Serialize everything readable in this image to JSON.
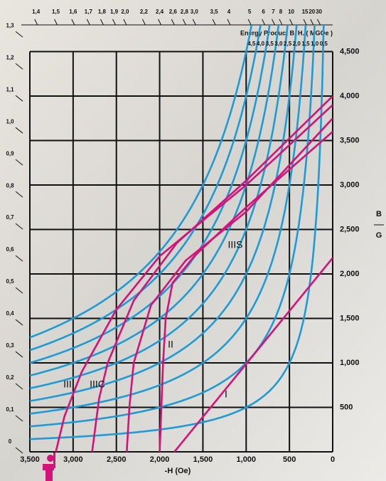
{
  "chart_data": {
    "type": "demagnetization",
    "x_label": "-H (Oe)",
    "y_label": "B",
    "y_label_unit": "G",
    "xlim": [
      3500,
      0
    ],
    "ylim": [
      0,
      4800
    ],
    "xticks": [
      {
        "value": 3500,
        "label": "3,500"
      },
      {
        "value": 3000,
        "label": "3,000"
      },
      {
        "value": 2500,
        "label": "2,500"
      },
      {
        "value": 2000,
        "label": "2,000"
      },
      {
        "value": 1500,
        "label": "1,500"
      },
      {
        "value": 1000,
        "label": "1,000"
      },
      500,
      0
    ],
    "yticks": [
      500,
      {
        "value": 1000,
        "label": "1,000"
      },
      {
        "value": 1500,
        "label": "1,500"
      },
      {
        "value": 2000,
        "label": "2,000"
      },
      {
        "value": 2500,
        "label": "2,500"
      },
      {
        "value": 3000,
        "label": "3,000"
      },
      {
        "value": 3500,
        "label": "3,500"
      },
      {
        "value": 4000,
        "label": "4,000"
      },
      {
        "value": 4500,
        "label": "4,500"
      }
    ],
    "grid": true,
    "energy_title": "Energy Product B. H. ( MGOe )",
    "energy_color": "#1e9ad6",
    "energy_ticks": [
      {
        "value": 4.5,
        "label": "4,5"
      },
      {
        "value": 4.0,
        "label": "4,0"
      },
      {
        "value": 3.5,
        "label": "3,5"
      },
      {
        "value": 3.0,
        "label": "3,0"
      },
      {
        "value": 2.5,
        "label": "2,5"
      },
      {
        "value": 2.0,
        "label": "2,0"
      },
      {
        "value": 1.5,
        "label": "1,5"
      },
      {
        "value": 1.0,
        "label": "1,0"
      },
      {
        "value": 0.5,
        "label": "0,5"
      }
    ],
    "permeance_ticks": [
      0,
      {
        "value": 0.1,
        "label": "0,1"
      },
      {
        "value": 0.2,
        "label": "0,2"
      },
      {
        "value": 0.3,
        "label": "0,3"
      },
      {
        "value": 0.4,
        "label": "0,4"
      },
      {
        "value": 0.5,
        "label": "0,5"
      },
      {
        "value": 0.6,
        "label": "0,6"
      },
      {
        "value": 0.7,
        "label": "0,7"
      },
      {
        "value": 0.8,
        "label": "0,8"
      },
      {
        "value": 0.9,
        "label": "0,9"
      },
      {
        "value": 1.0,
        "label": "1,0"
      },
      {
        "value": 1.1,
        "label": "1,1"
      },
      {
        "value": 1.2,
        "label": "1,2"
      },
      {
        "value": 1.3,
        "label": "1,3"
      },
      {
        "value": 1.4,
        "label": "1,4"
      },
      {
        "value": 1.5,
        "label": "1,5"
      },
      {
        "value": 1.6,
        "label": "1,6"
      },
      {
        "value": 1.7,
        "label": "1,7"
      },
      {
        "value": 1.8,
        "label": "1,8"
      },
      {
        "value": 1.9,
        "label": "1,9"
      },
      {
        "value": 2.0,
        "label": "2,0"
      },
      {
        "value": 2.2,
        "label": "2,2"
      },
      {
        "value": 2.4,
        "label": "2,4"
      },
      {
        "value": 2.6,
        "label": "2,6"
      },
      {
        "value": 2.8,
        "label": "2,8"
      },
      {
        "value": 3.0,
        "label": "3,0"
      },
      {
        "value": 3.5,
        "label": "3,5"
      },
      4,
      5,
      6,
      7,
      8,
      10,
      15,
      20,
      30
    ],
    "series": [
      {
        "name": "I",
        "color": "#d4127a",
        "x": [
          0,
          1830
        ],
        "values": [
          2180,
          0
        ]
      },
      {
        "name": "II",
        "color": "#d4127a",
        "x": [
          0,
          1000,
          1600,
          1850,
          1930,
          1960,
          1980,
          2000
        ],
        "values": [
          3600,
          2750,
          2200,
          1900,
          1500,
          1000,
          500,
          0
        ]
      },
      {
        "name": "IIIS",
        "color": "#d4127a",
        "x": [
          0,
          1000,
          1700,
          2100,
          2300,
          2350,
          2380
        ],
        "values": [
          3750,
          2700,
          2150,
          1650,
          1000,
          500,
          0
        ]
      },
      {
        "name": "III",
        "color": "#d4127a",
        "x": [
          0,
          1000,
          2000,
          2500,
          2900,
          3100,
          3200
        ],
        "values": [
          3900,
          3000,
          2200,
          1600,
          900,
          400,
          0
        ]
      },
      {
        "name": "IIIC",
        "color": "#d4127a",
        "x": [
          0,
          1000,
          1800,
          2300,
          2600,
          2700,
          2780
        ],
        "values": [
          4000,
          3050,
          2350,
          1700,
          1000,
          600,
          0
        ]
      }
    ]
  }
}
